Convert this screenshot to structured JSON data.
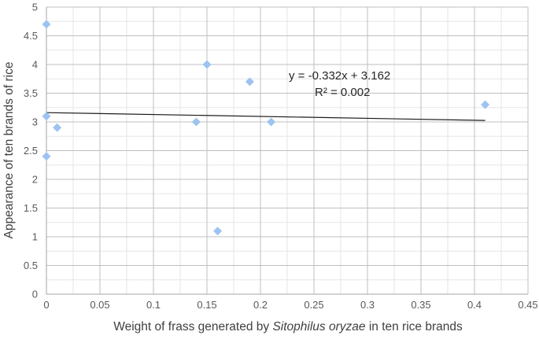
{
  "chart_data": {
    "type": "scatter",
    "title": "",
    "xlabel_prefix": "Weight of frass generated by ",
    "xlabel_italic": "Sitophilus oryzae",
    "xlabel_suffix": " in ten rice brands",
    "ylabel": "Appearance of ten brands of rice",
    "xlim": [
      0,
      0.45
    ],
    "ylim": [
      0,
      5
    ],
    "x_ticks": [
      0,
      0.05,
      0.1,
      0.15,
      0.2,
      0.25,
      0.3,
      0.35,
      0.4,
      0.45
    ],
    "x_tick_labels": [
      "0",
      "0.05",
      "0.1",
      "0.15",
      "0.2",
      "0.25",
      "0.3",
      "0.35",
      "0.4",
      "0.45"
    ],
    "y_ticks": [
      0,
      0.5,
      1,
      1.5,
      2,
      2.5,
      3,
      3.5,
      4,
      4.5,
      5
    ],
    "y_tick_labels": [
      "0",
      "0.5",
      "1",
      "1.5",
      "2",
      "2.5",
      "3",
      "3.5",
      "4",
      "4.5",
      "5"
    ],
    "grid": true,
    "minor_grid": true,
    "marker_color": "#9DC3F0",
    "trendline_color": "#1a1a1a",
    "series": [
      {
        "points": [
          {
            "x": 0,
            "y": 4.7
          },
          {
            "x": 0,
            "y": 3.1
          },
          {
            "x": 0.01,
            "y": 2.9
          },
          {
            "x": 0,
            "y": 2.4
          },
          {
            "x": 0.14,
            "y": 3.0
          },
          {
            "x": 0.15,
            "y": 4.0
          },
          {
            "x": 0.16,
            "y": 1.1
          },
          {
            "x": 0.19,
            "y": 3.7
          },
          {
            "x": 0.21,
            "y": 3.0
          },
          {
            "x": 0.41,
            "y": 3.3
          }
        ]
      }
    ],
    "trendline": {
      "slope": -0.332,
      "intercept": 3.162,
      "x_range": [
        0,
        0.41
      ],
      "equation_label": "y = -0.332x + 3.162",
      "r2_label": "R² = 0.002"
    }
  }
}
